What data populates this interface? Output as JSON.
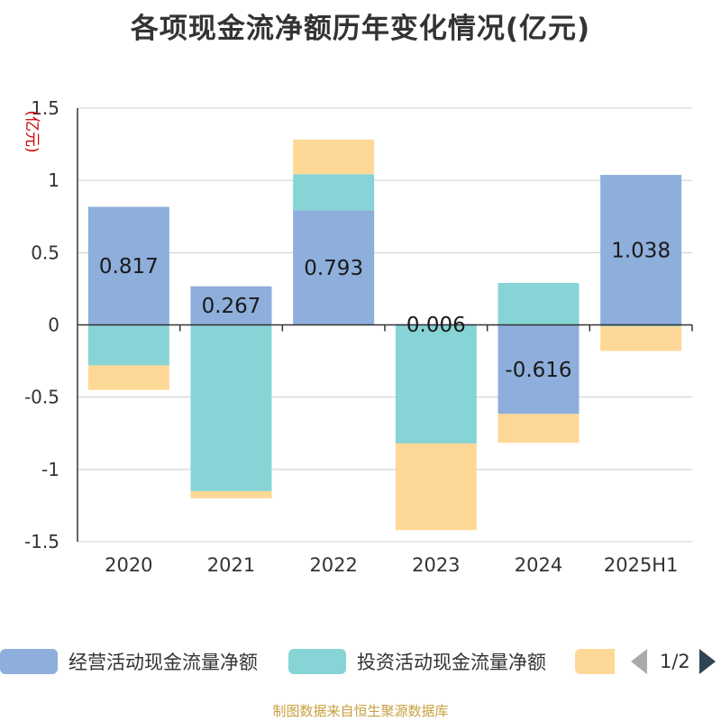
{
  "title": "各项现金流净额历年变化情况(亿元)",
  "source": "制图数据来自恒生聚源数据库",
  "legend": {
    "items": [
      {
        "label": "经营活动现金流量净额",
        "color": "#8eaedb"
      },
      {
        "label": "投资活动现金流量净额",
        "color": "#86d4d6"
      },
      {
        "label": "",
        "color": "#fed897"
      }
    ],
    "pager": "1/2"
  },
  "chart_data": {
    "type": "bar",
    "stacked": true,
    "categories": [
      "2020",
      "2021",
      "2022",
      "2023",
      "2024",
      "2025H1"
    ],
    "ylabel": "(亿元)",
    "ylim": [
      -1.5,
      1.5
    ],
    "yticks": [
      1.5,
      1,
      0.5,
      0,
      -0.5,
      -1,
      -1.5
    ],
    "ytick_labels": [
      "1.5",
      "1",
      "0.5",
      "0",
      "-0.5",
      "-1",
      "-1.5"
    ],
    "grid": true,
    "legend_position": "bottom",
    "series": [
      {
        "name": "经营活动现金流量净额",
        "color": "#8eaedb",
        "values": [
          0.817,
          0.267,
          0.793,
          0.006,
          -0.616,
          1.038
        ],
        "labels": [
          "0.817",
          "0.267",
          "0.793",
          "0.006",
          "-0.616",
          "1.038"
        ]
      },
      {
        "name": "投资活动现金流量净额",
        "color": "#86d4d6",
        "values": [
          -0.28,
          -1.15,
          0.25,
          -0.82,
          0.29,
          -0.01
        ]
      },
      {
        "color": "#fed897",
        "values": [
          -0.17,
          -0.05,
          0.24,
          -0.6,
          -0.2,
          -0.17
        ]
      }
    ]
  }
}
